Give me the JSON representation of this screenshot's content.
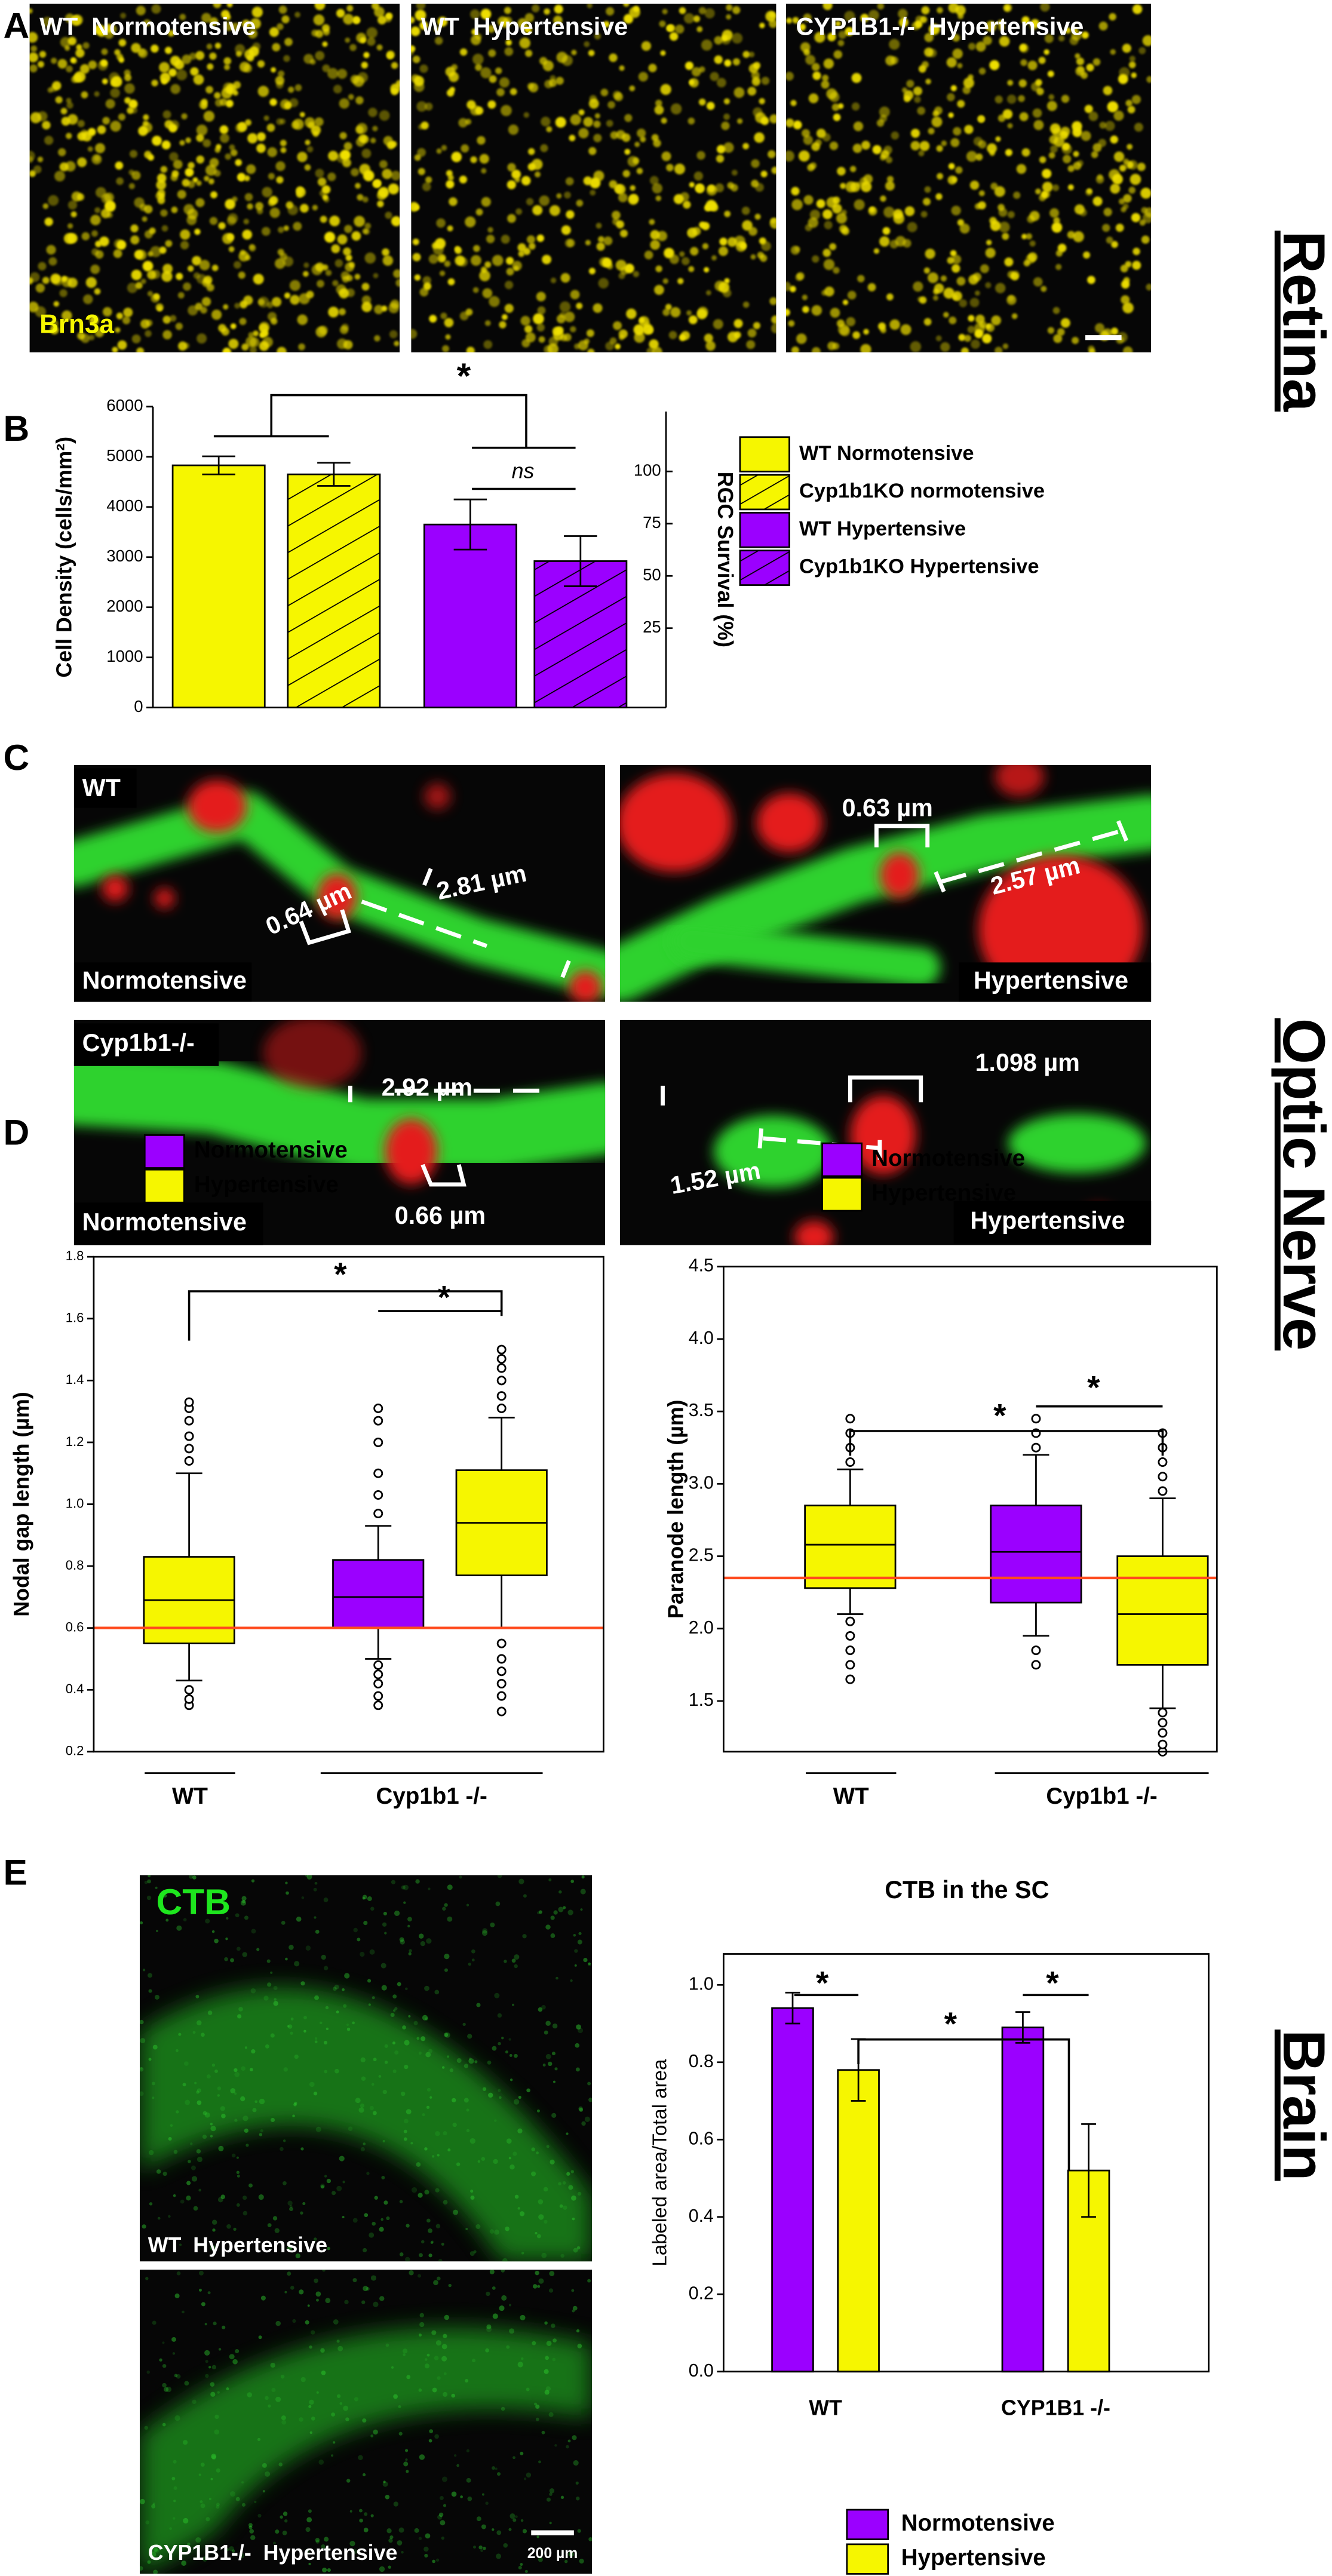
{
  "figure": {
    "panel_labels": [
      "A",
      "B",
      "C",
      "D",
      "E"
    ],
    "section_labels": {
      "retina": "Retina",
      "optic_nerve": "Optic Nerve",
      "brain": "Brain"
    },
    "panel_a": {
      "images": [
        "WT  Normotensive",
        "WT  Hypertensive",
        "CYP1B1-/-  Hypertensive"
      ],
      "stain": "Brn3a"
    },
    "panel_c": {
      "images": [
        {
          "genotype": "WT",
          "condition": "Normotensive",
          "measurements": [
            "0.64 µm",
            "2.81 µm"
          ]
        },
        {
          "condition": "Hypertensive",
          "measurements": [
            "0.63 µm",
            "2.57 µm"
          ]
        },
        {
          "genotype": "Cyp1b1-/-",
          "condition": "Normotensive",
          "measurements": [
            "2.92 µm",
            "0.66 µm"
          ]
        },
        {
          "condition": "Hypertensive",
          "measurements": [
            "1.098 µm",
            "1.52 µm"
          ]
        }
      ]
    },
    "panel_e": {
      "stain": "CTB",
      "images": [
        "WT  Hypertensive",
        "CYP1B1-/-  Hypertensive"
      ],
      "scale_bar": "200 µm"
    }
  },
  "chart_data": [
    {
      "type": "bar",
      "ylabel": "Cell Density (cells/mm²)",
      "y2label": "RGC Survival (%)",
      "ylim": [
        0,
        6000
      ],
      "yticks": [
        0,
        1000,
        2000,
        3000,
        4000,
        5000,
        6000
      ],
      "y2lim": [
        -13,
        131
      ],
      "y2ticks": [
        25,
        50,
        75,
        100
      ],
      "series": [
        {
          "name": "WT Normotensive",
          "color": "#f6f600",
          "hatch": false,
          "values": [
            4830
          ],
          "errors": [
            180
          ]
        },
        {
          "name": "Cyp1b1KO normotensive",
          "color": "#f6f600",
          "hatch": true,
          "values": [
            4650
          ],
          "errors": [
            230
          ]
        },
        {
          "name": "WT Hypertensive",
          "color": "#9b00ff",
          "hatch": false,
          "values": [
            3650
          ],
          "errors": [
            500
          ]
        },
        {
          "name": "Cyp1b1KO Hypertensive",
          "color": "#9b00ff",
          "hatch": true,
          "values": [
            2920
          ],
          "errors": [
            500
          ]
        }
      ],
      "annotations": [
        "*",
        "ns"
      ]
    },
    {
      "type": "box",
      "ylabel": "Nodal gap length (µm)",
      "ylim": [
        0.2,
        1.8
      ],
      "yticks": [
        0.2,
        0.4,
        0.6,
        0.8,
        {
          "value": 1,
          "label": "1.0"
        },
        1.2,
        1.4,
        1.6,
        1.8
      ],
      "legend": [
        {
          "name": "Normotensive",
          "color": "#9b00ff"
        },
        {
          "name": "Hypertensive",
          "color": "#f6f600"
        }
      ],
      "reference_line": 0.6,
      "reference_color": "#ff4b1f",
      "groups": [
        {
          "label": "WT",
          "boxes": [
            {
              "color": "#f6f600",
              "whisker_low": 0.43,
              "q1": 0.55,
              "median": 0.69,
              "q3": 0.83,
              "whisker_high": 1.1,
              "outliers": [
                0.35,
                0.37,
                0.4,
                1.14,
                1.18,
                1.22,
                1.27,
                1.31,
                1.33
              ]
            }
          ]
        },
        {
          "label": "Cyp1b1 -/-",
          "boxes": [
            {
              "color": "#9b00ff",
              "whisker_low": 0.5,
              "q1": 0.6,
              "median": 0.7,
              "q3": 0.82,
              "whisker_high": 0.93,
              "outliers": [
                0.35,
                0.38,
                0.42,
                0.45,
                0.48,
                0.97,
                1.03,
                1.1,
                1.2,
                1.27,
                1.31
              ]
            },
            {
              "color": "#f6f600",
              "whisker_low": 0.6,
              "q1": 0.77,
              "median": 0.94,
              "q3": 1.11,
              "whisker_high": 1.28,
              "outliers": [
                0.33,
                0.38,
                0.42,
                0.46,
                0.5,
                0.55,
                1.31,
                1.35,
                1.4,
                1.44,
                1.47,
                1.5
              ]
            }
          ]
        }
      ],
      "annotations": [
        "*",
        "*"
      ]
    },
    {
      "type": "box",
      "ylabel": "Paranode length (µm)",
      "ylim": [
        1.15,
        4.5
      ],
      "yticks": [
        1.5,
        {
          "value": 2,
          "label": "2.0"
        },
        2.5,
        {
          "value": 3,
          "label": "3.0"
        },
        3.5,
        {
          "value": 4,
          "label": "4.0"
        },
        4.5
      ],
      "legend": [
        {
          "name": "Normotensive",
          "color": "#9b00ff"
        },
        {
          "name": "Hypertensive",
          "color": "#f6f600"
        }
      ],
      "reference_line": 2.35,
      "reference_color": "#ff4b1f",
      "groups": [
        {
          "label": "WT",
          "boxes": [
            {
              "color": "#f6f600",
              "whisker_low": 2.1,
              "q1": 2.28,
              "median": 2.58,
              "q3": 2.85,
              "whisker_high": 3.1,
              "outliers": [
                1.65,
                1.75,
                1.85,
                1.95,
                2.05,
                3.15,
                3.25,
                3.35,
                3.45
              ]
            }
          ]
        },
        {
          "label": "Cyp1b1 -/-",
          "boxes": [
            {
              "color": "#9b00ff",
              "whisker_low": 1.95,
              "q1": 2.18,
              "median": 2.53,
              "q3": 2.85,
              "whisker_high": 3.2,
              "outliers": [
                1.75,
                1.85,
                3.25,
                3.35,
                3.45
              ]
            },
            {
              "color": "#f6f600",
              "whisker_low": 1.45,
              "q1": 1.75,
              "median": 2.1,
              "q3": 2.5,
              "whisker_high": 2.9,
              "outliers": [
                1.15,
                1.2,
                1.28,
                1.35,
                1.42,
                2.95,
                3.05,
                3.15,
                3.25,
                3.35
              ]
            }
          ]
        }
      ],
      "annotations": [
        "*",
        "*"
      ]
    },
    {
      "type": "bar",
      "title": "CTB in the SC",
      "ylabel": "Labeled area/Total area",
      "categories": [
        "WT",
        "CYP1B1 -/-"
      ],
      "ylim": [
        0,
        1.08
      ],
      "yticks": [
        {
          "value": 0,
          "label": "0.0"
        },
        0.2,
        0.4,
        0.6,
        0.8,
        {
          "value": 1,
          "label": "1.0"
        }
      ],
      "series": [
        {
          "name": "Normotensive",
          "color": "#9b00ff",
          "values": [
            0.94,
            0.89
          ],
          "errors": [
            0.04,
            0.04
          ]
        },
        {
          "name": "Hypertensive",
          "color": "#f6f600",
          "values": [
            0.78,
            0.52
          ],
          "errors": [
            0.08,
            0.12
          ]
        }
      ],
      "annotations": [
        "*",
        "*",
        "*"
      ]
    }
  ]
}
